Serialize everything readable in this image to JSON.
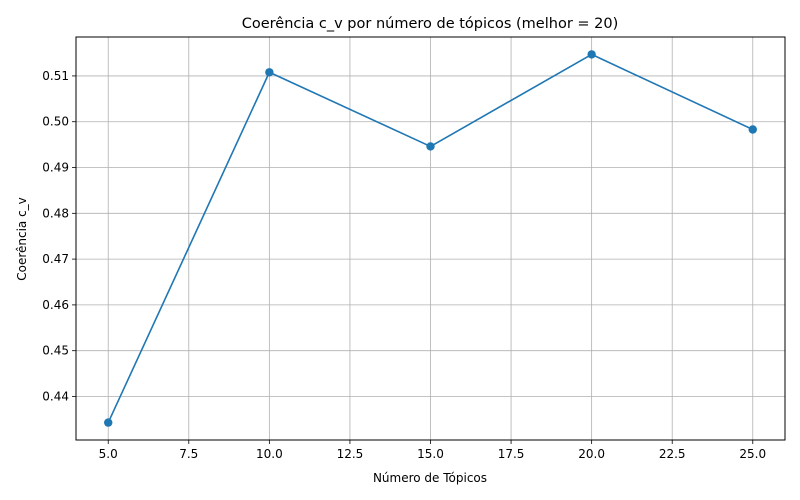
{
  "chart_data": {
    "type": "line",
    "title": "Coerência c_v por número de tópicos (melhor = 20)",
    "xlabel": "Número de Tópicos",
    "ylabel": "Coerência c_v",
    "x": [
      5,
      10,
      15,
      20,
      25
    ],
    "series": [
      {
        "values": [
          0.4343,
          0.5108,
          0.4946,
          0.5147,
          0.4983
        ]
      }
    ],
    "x_ticks": [
      "5.0",
      "7.5",
      "10.0",
      "12.5",
      "15.0",
      "17.5",
      "20.0",
      "22.5",
      "25.0"
    ],
    "y_ticks": [
      "0.44",
      "0.45",
      "0.46",
      "0.47",
      "0.48",
      "0.49",
      "0.50",
      "0.51"
    ],
    "xlim": [
      4.0,
      26.0
    ],
    "ylim": [
      0.4305,
      0.5185
    ],
    "grid": true,
    "line_color": "#1f77b4",
    "marker": "circle"
  }
}
